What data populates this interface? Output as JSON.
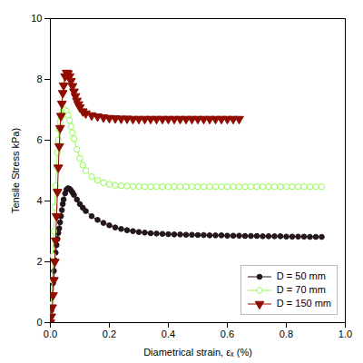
{
  "chart_data": {
    "type": "line",
    "xlabel": "Diametrical strain, εₓ (%)",
    "ylabel": "Tensile Stress kPa)",
    "xlim": [
      0,
      1.0
    ],
    "ylim": [
      0,
      10
    ],
    "xticks": [
      {
        "value": 0.0,
        "label": "0.0"
      },
      {
        "value": 0.2,
        "label": "0.2"
      },
      {
        "value": 0.4,
        "label": "0.4"
      },
      {
        "value": 0.6,
        "label": "0.6"
      },
      {
        "value": 0.8,
        "label": "0.8"
      },
      {
        "value": 1.0,
        "label": "1.0"
      }
    ],
    "yticks": [
      0,
      2,
      4,
      6,
      8,
      10
    ],
    "grid": false,
    "legend": "lower right",
    "series": [
      {
        "name": "D = 50 mm",
        "marker": "circle",
        "line_style": "solid",
        "x": [
          0.0,
          0.003,
          0.006,
          0.009,
          0.012,
          0.015,
          0.018,
          0.021,
          0.024,
          0.027,
          0.03,
          0.033,
          0.036,
          0.039,
          0.042,
          0.045,
          0.05,
          0.055,
          0.06,
          0.065,
          0.07,
          0.075,
          0.08,
          0.09,
          0.1,
          0.11,
          0.12,
          0.14,
          0.16,
          0.18,
          0.2,
          0.22,
          0.24,
          0.26,
          0.28,
          0.3,
          0.32,
          0.34,
          0.36,
          0.38,
          0.4,
          0.42,
          0.44,
          0.46,
          0.48,
          0.5,
          0.52,
          0.54,
          0.56,
          0.58,
          0.6,
          0.62,
          0.64,
          0.66,
          0.68,
          0.7,
          0.72,
          0.74,
          0.76,
          0.78,
          0.8,
          0.82,
          0.84,
          0.86,
          0.88,
          0.9,
          0.92
        ],
        "values": [
          0.0,
          0.4,
          0.9,
          1.3,
          1.7,
          2.05,
          2.3,
          2.55,
          2.75,
          2.95,
          3.1,
          3.3,
          3.5,
          3.7,
          3.9,
          4.05,
          4.25,
          4.38,
          4.42,
          4.4,
          4.35,
          4.28,
          4.2,
          4.05,
          3.9,
          3.78,
          3.67,
          3.5,
          3.38,
          3.28,
          3.2,
          3.13,
          3.08,
          3.04,
          3.01,
          2.98,
          2.96,
          2.94,
          2.93,
          2.92,
          2.91,
          2.9,
          2.9,
          2.89,
          2.89,
          2.88,
          2.88,
          2.87,
          2.87,
          2.87,
          2.86,
          2.86,
          2.86,
          2.85,
          2.85,
          2.85,
          2.84,
          2.84,
          2.84,
          2.84,
          2.83,
          2.83,
          2.83,
          2.83,
          2.82,
          2.82,
          2.82
        ]
      },
      {
        "name": "D = 70 mm",
        "marker": "circle_open",
        "line_style": "solid",
        "x": [
          0.0,
          0.003,
          0.006,
          0.009,
          0.012,
          0.015,
          0.018,
          0.021,
          0.024,
          0.027,
          0.03,
          0.033,
          0.036,
          0.039,
          0.042,
          0.045,
          0.05,
          0.055,
          0.06,
          0.065,
          0.07,
          0.075,
          0.08,
          0.09,
          0.1,
          0.11,
          0.12,
          0.14,
          0.16,
          0.18,
          0.2,
          0.22,
          0.24,
          0.26,
          0.28,
          0.3,
          0.32,
          0.34,
          0.36,
          0.38,
          0.4,
          0.42,
          0.44,
          0.46,
          0.48,
          0.5,
          0.52,
          0.54,
          0.56,
          0.58,
          0.6,
          0.62,
          0.64,
          0.66,
          0.68,
          0.7,
          0.72,
          0.74,
          0.76,
          0.78,
          0.8,
          0.82,
          0.84,
          0.86,
          0.88,
          0.9,
          0.92
        ],
        "values": [
          0.0,
          0.6,
          1.4,
          2.2,
          3.0,
          3.8,
          4.5,
          5.1,
          5.6,
          6.0,
          6.35,
          6.6,
          6.75,
          6.88,
          6.95,
          7.0,
          7.0,
          6.95,
          6.82,
          6.65,
          6.45,
          6.25,
          6.05,
          5.7,
          5.4,
          5.18,
          5.0,
          4.8,
          4.68,
          4.6,
          4.55,
          4.52,
          4.5,
          4.49,
          4.48,
          4.48,
          4.47,
          4.47,
          4.47,
          4.47,
          4.47,
          4.47,
          4.47,
          4.47,
          4.47,
          4.47,
          4.47,
          4.47,
          4.47,
          4.47,
          4.47,
          4.47,
          4.47,
          4.47,
          4.47,
          4.47,
          4.47,
          4.47,
          4.47,
          4.47,
          4.47,
          4.47,
          4.47,
          4.47,
          4.47,
          4.47,
          4.47
        ]
      },
      {
        "name": "D = 150 mm",
        "marker": "triangle_down",
        "line_style": "solid",
        "x": [
          0.0,
          0.003,
          0.006,
          0.009,
          0.012,
          0.015,
          0.018,
          0.021,
          0.024,
          0.027,
          0.03,
          0.033,
          0.036,
          0.039,
          0.042,
          0.045,
          0.05,
          0.055,
          0.06,
          0.065,
          0.07,
          0.075,
          0.08,
          0.085,
          0.09,
          0.095,
          0.1,
          0.11,
          0.12,
          0.14,
          0.16,
          0.18,
          0.2,
          0.22,
          0.24,
          0.26,
          0.28,
          0.3,
          0.32,
          0.34,
          0.36,
          0.38,
          0.4,
          0.42,
          0.44,
          0.46,
          0.48,
          0.5,
          0.52,
          0.54,
          0.56,
          0.58,
          0.6,
          0.62,
          0.64
        ],
        "values": [
          0.0,
          0.2,
          0.5,
          0.9,
          1.4,
          2.0,
          2.7,
          3.5,
          4.3,
          5.1,
          5.8,
          6.4,
          6.8,
          7.2,
          7.55,
          7.8,
          8.1,
          8.22,
          8.2,
          8.1,
          7.95,
          7.78,
          7.6,
          7.45,
          7.3,
          7.18,
          7.08,
          6.95,
          6.88,
          6.82,
          6.78,
          6.75,
          6.73,
          6.72,
          6.71,
          6.71,
          6.7,
          6.7,
          6.7,
          6.7,
          6.7,
          6.7,
          6.7,
          6.7,
          6.7,
          6.7,
          6.7,
          6.7,
          6.7,
          6.7,
          6.7,
          6.7,
          6.7,
          6.7,
          6.7
        ]
      }
    ]
  }
}
